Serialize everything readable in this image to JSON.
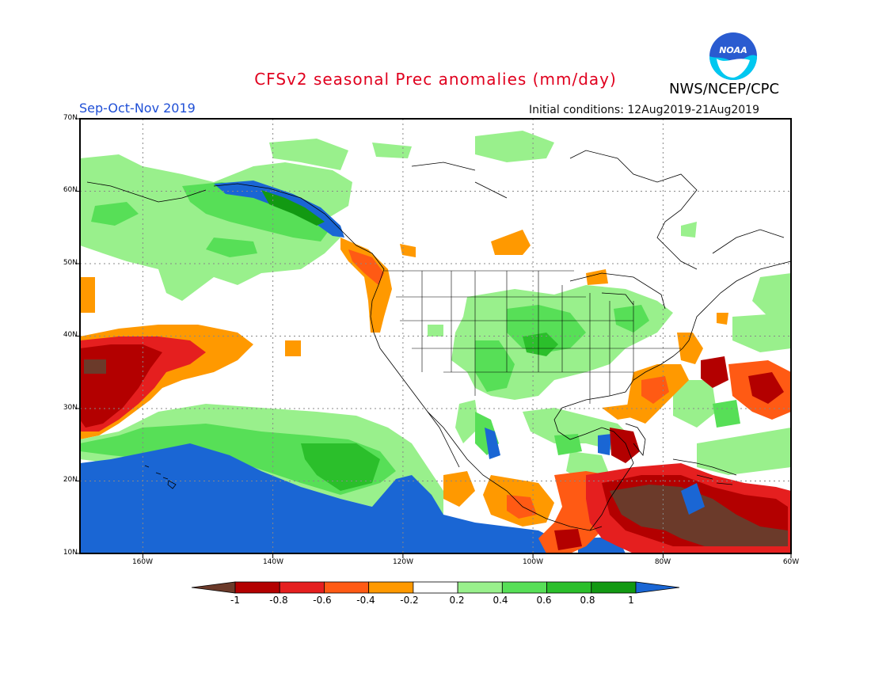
{
  "title": "CFSv2 seasonal Prec anomalies (mm/day)",
  "agency": "NWS/NCEP/CPC",
  "logo_text": "NOAA",
  "season": "Sep-Oct-Nov 2019",
  "initial_conditions": "Initial conditions: 12Aug2019-21Aug2019",
  "map": {
    "lat_labels": [
      "70N",
      "60N",
      "50N",
      "40N",
      "30N",
      "20N",
      "10N"
    ],
    "lon_labels": [
      "160W",
      "140W",
      "120W",
      "100W",
      "80W",
      "60W"
    ],
    "lat_range": [
      10,
      70
    ],
    "lon_range": [
      -172,
      -60
    ]
  },
  "colorbar": {
    "labels": [
      "-1",
      "-0.8",
      "-0.6",
      "-0.4",
      "-0.2",
      "0.2",
      "0.4",
      "0.6",
      "0.8",
      "1"
    ],
    "colors": [
      "#6b3a2a",
      "#b30000",
      "#e51f1f",
      "#ff5a14",
      "#ff9900",
      "#ffffff",
      "#99f08c",
      "#57df57",
      "#2bbf2b",
      "#129912",
      "#1a66d4"
    ]
  },
  "colors": {
    "title": "#e0001e",
    "season": "#1f4fd6",
    "dry_strong": "#6b3a2a",
    "wet_strong": "#1a66d4"
  }
}
